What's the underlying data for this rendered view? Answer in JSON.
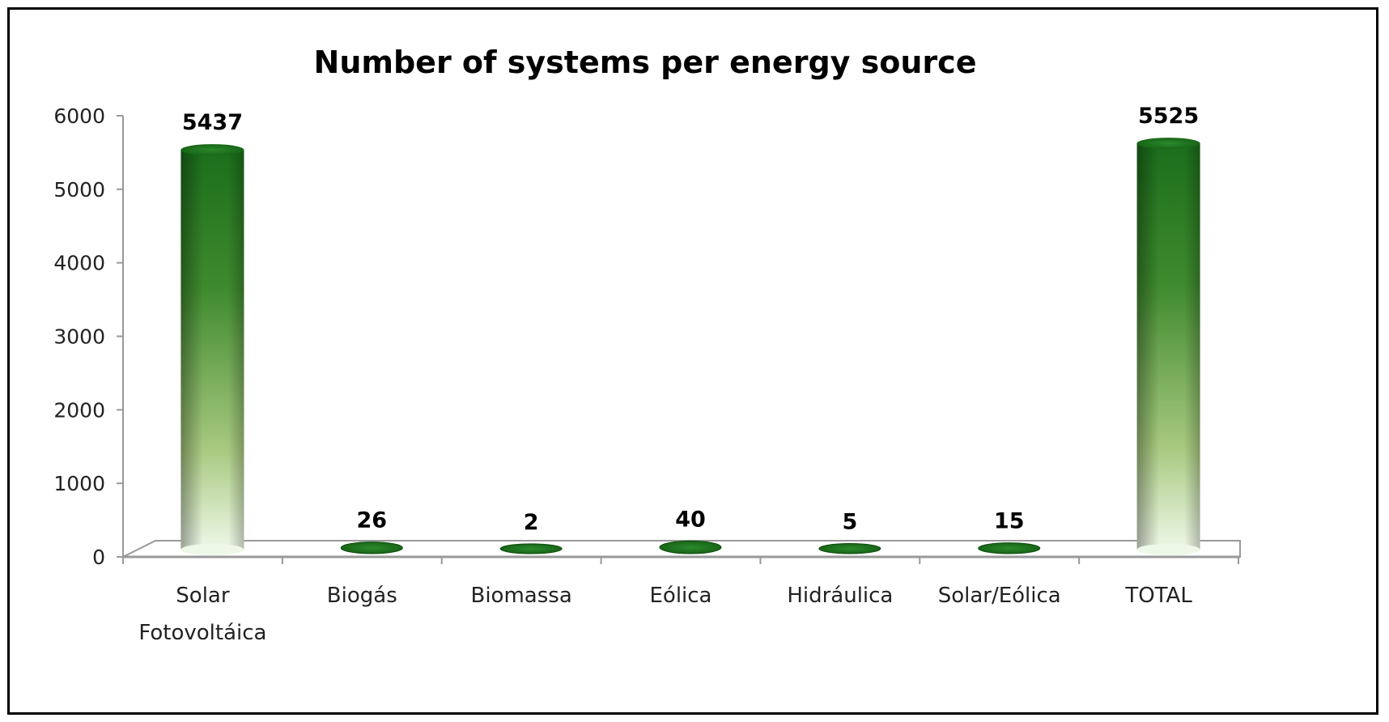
{
  "chart_data": {
    "type": "bar",
    "title": "Number of systems per energy source",
    "xlabel": "",
    "ylabel": "",
    "ylim": [
      0,
      6000
    ],
    "yticks": [
      0,
      1000,
      2000,
      3000,
      4000,
      5000,
      6000
    ],
    "categories": [
      [
        "Solar",
        "Fotovoltáica"
      ],
      [
        "Biogás"
      ],
      [
        "Biomassa"
      ],
      [
        "Eólica"
      ],
      [
        "Hidráulica"
      ],
      [
        "Solar/Eólica"
      ],
      [
        "TOTAL"
      ]
    ],
    "values": [
      5437,
      26,
      2,
      40,
      5,
      15,
      5525
    ],
    "grid": false,
    "legend": "none",
    "colors": {
      "bar_dark": "#0f4d0f",
      "bar_mid": "#5a9a3c",
      "bar_light": "#eaf7e4",
      "axis": "#999999"
    }
  }
}
